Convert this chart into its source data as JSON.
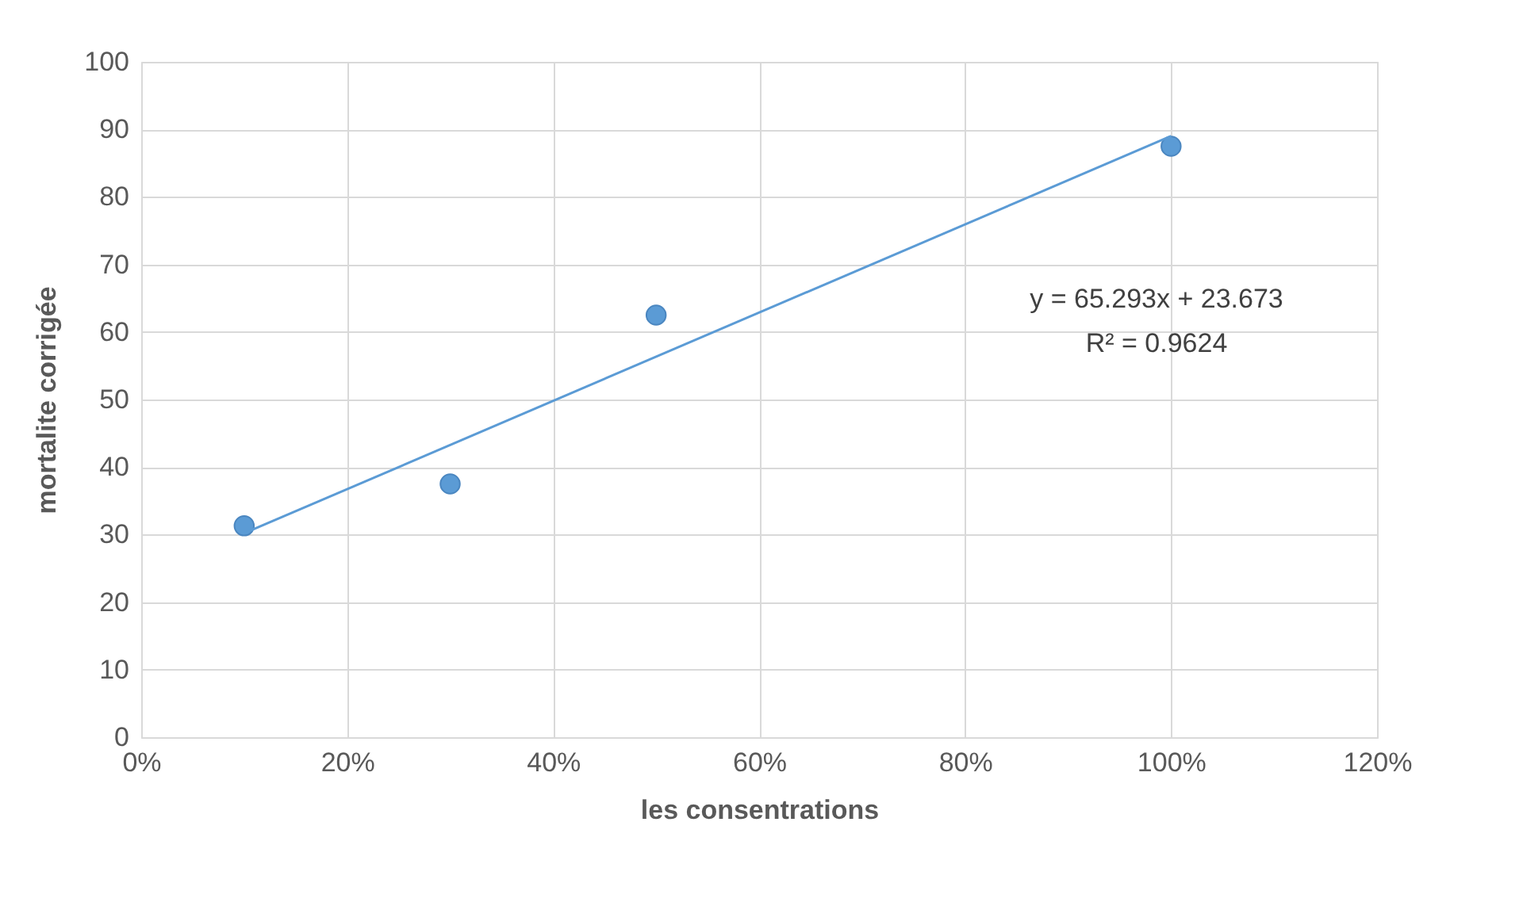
{
  "chart_data": {
    "type": "scatter",
    "xlabel": "les consentrations",
    "ylabel": "mortalite corrigée",
    "series": [
      {
        "color": "#5b9bd5",
        "marker": "circle",
        "x": [
          0.1,
          0.3,
          0.5,
          1.0
        ],
        "values": [
          31.3,
          37.5,
          62.5,
          87.5
        ]
      },
      {
        "type": "line",
        "color": "#5b9bd5",
        "line_style": "solid",
        "x": [
          0.1,
          1.0
        ],
        "values": [
          30.2,
          89.0
        ]
      }
    ],
    "annotations": [
      "y = 65.293x + 23.673",
      "R² = 0.9624"
    ],
    "xlim": [
      0,
      1.2
    ],
    "xticks": [
      {
        "value": 0,
        "label": "0%"
      },
      {
        "value": 0.2,
        "label": "20%"
      },
      {
        "value": 0.4,
        "label": "40%"
      },
      {
        "value": 0.6,
        "label": "60%"
      },
      {
        "value": 0.8,
        "label": "80%"
      },
      {
        "value": 1.0,
        "label": "100%"
      },
      {
        "value": 1.2,
        "label": "120%"
      }
    ],
    "ylim": [
      0,
      100
    ],
    "yticks": [
      0,
      10,
      20,
      30,
      40,
      50,
      60,
      70,
      80,
      90,
      100
    ],
    "grid": true
  }
}
